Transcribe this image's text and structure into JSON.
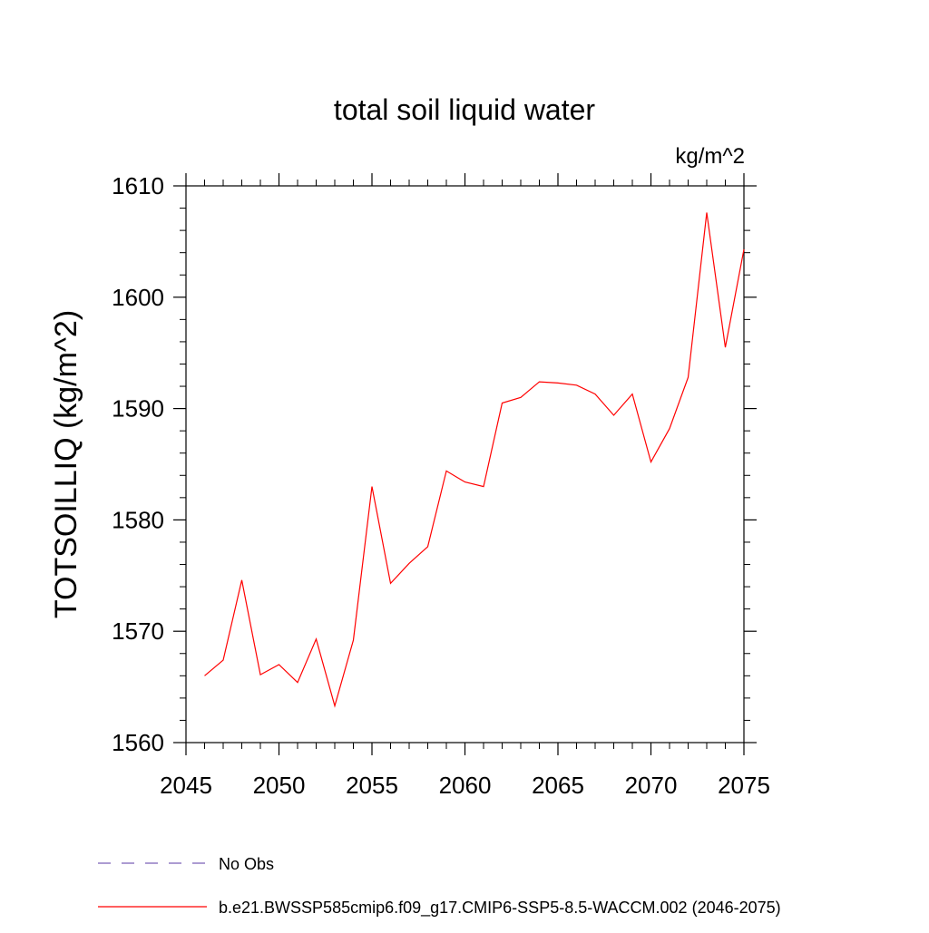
{
  "chart_data": {
    "type": "line",
    "title": "total soil liquid water",
    "units": "kg/m^2",
    "ylabel": "TOTSOILLIQ  (kg/m^2)",
    "xlabel": "",
    "xlim": [
      2045,
      2075
    ],
    "ylim": [
      1560,
      1610
    ],
    "x_ticks": [
      2045,
      2050,
      2055,
      2060,
      2065,
      2070,
      2075
    ],
    "y_ticks": [
      1560,
      1570,
      1580,
      1590,
      1600,
      1610
    ],
    "x_tick_labels": [
      "2045",
      "2050",
      "2055",
      "2060",
      "2065",
      "2070",
      "2075"
    ],
    "y_tick_labels": [
      "1560",
      "1570",
      "1580",
      "1590",
      "1600",
      "1610"
    ],
    "grid": false,
    "legend_position": "bottom-left",
    "series": [
      {
        "name": "b.e21.BWSSP585cmip6.f09_g17.CMIP6-SSP5-8.5-WACCM.002 (2046-2075)",
        "color": "#ff0000",
        "style": "solid",
        "x": [
          2046,
          2047,
          2048,
          2049,
          2050,
          2051,
          2052,
          2053,
          2054,
          2055,
          2056,
          2057,
          2058,
          2059,
          2060,
          2061,
          2062,
          2063,
          2064,
          2065,
          2066,
          2067,
          2068,
          2069,
          2070,
          2071,
          2072,
          2073,
          2074,
          2075
        ],
        "values": [
          1566.0,
          1567.4,
          1574.6,
          1566.1,
          1567.0,
          1565.4,
          1569.3,
          1563.3,
          1569.2,
          1583.0,
          1574.3,
          1576.1,
          1577.6,
          1584.4,
          1583.4,
          1583.0,
          1590.5,
          1591.0,
          1592.4,
          1592.3,
          1592.1,
          1591.3,
          1589.4,
          1591.3,
          1585.2,
          1588.2,
          1592.8,
          1607.6,
          1595.5,
          1604.3
        ]
      }
    ],
    "legend": [
      {
        "label": "No Obs",
        "color": "#7b5fb8",
        "style": "dashed"
      },
      {
        "label": "b.e21.BWSSP585cmip6.f09_g17.CMIP6-SSP5-8.5-WACCM.002 (2046-2075)",
        "color": "#ff0000",
        "style": "solid"
      }
    ]
  }
}
